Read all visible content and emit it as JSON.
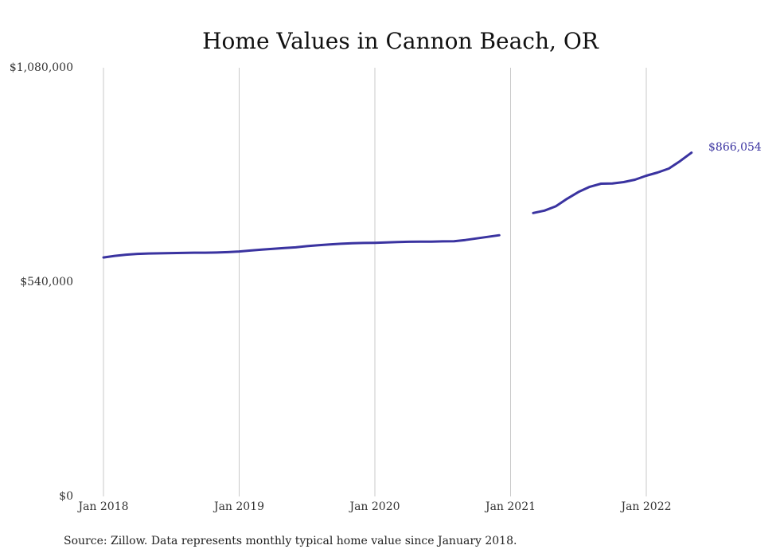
{
  "chart_data": {
    "type": "line",
    "title": "Home Values in Cannon Beach, OR",
    "xlabel": "",
    "ylabel": "",
    "ylim": [
      0,
      1080000
    ],
    "y_ticks": [
      {
        "value": 0,
        "label": "$0"
      },
      {
        "value": 540000,
        "label": "$540,000"
      },
      {
        "value": 1080000,
        "label": "$1,080,000"
      }
    ],
    "x_ticks": [
      {
        "value": "2018-01",
        "label": "Jan 2018"
      },
      {
        "value": "2019-01",
        "label": "Jan 2019"
      },
      {
        "value": "2020-01",
        "label": "Jan 2020"
      },
      {
        "value": "2021-01",
        "label": "Jan 2021"
      },
      {
        "value": "2022-01",
        "label": "Jan 2022"
      }
    ],
    "x_range": [
      "2018-01",
      "2022-05"
    ],
    "grid": "vertical",
    "legend": "none",
    "line_color": "#3a33a0",
    "end_label": "$866,054",
    "series": [
      {
        "segments": [
          [
            {
              "x": "2018-01",
              "y": 602000
            },
            {
              "x": "2018-02",
              "y": 606000
            },
            {
              "x": "2018-03",
              "y": 609000
            },
            {
              "x": "2018-04",
              "y": 611000
            },
            {
              "x": "2018-05",
              "y": 612000
            },
            {
              "x": "2018-06",
              "y": 612500
            },
            {
              "x": "2018-07",
              "y": 613000
            },
            {
              "x": "2018-08",
              "y": 613500
            },
            {
              "x": "2018-09",
              "y": 614000
            },
            {
              "x": "2018-10",
              "y": 614000
            },
            {
              "x": "2018-11",
              "y": 614500
            },
            {
              "x": "2018-12",
              "y": 615500
            },
            {
              "x": "2019-01",
              "y": 617000
            },
            {
              "x": "2019-02",
              "y": 619500
            },
            {
              "x": "2019-03",
              "y": 622000
            },
            {
              "x": "2019-04",
              "y": 624000
            },
            {
              "x": "2019-05",
              "y": 626000
            },
            {
              "x": "2019-06",
              "y": 627500
            },
            {
              "x": "2019-07",
              "y": 630500
            },
            {
              "x": "2019-08",
              "y": 633000
            },
            {
              "x": "2019-09",
              "y": 635000
            },
            {
              "x": "2019-10",
              "y": 636500
            },
            {
              "x": "2019-11",
              "y": 638000
            },
            {
              "x": "2019-12",
              "y": 638500
            },
            {
              "x": "2020-01",
              "y": 639000
            },
            {
              "x": "2020-02",
              "y": 640000
            },
            {
              "x": "2020-03",
              "y": 641000
            },
            {
              "x": "2020-04",
              "y": 641500
            },
            {
              "x": "2020-05",
              "y": 642000
            },
            {
              "x": "2020-06",
              "y": 642000
            },
            {
              "x": "2020-07",
              "y": 642500
            },
            {
              "x": "2020-08",
              "y": 643000
            },
            {
              "x": "2020-09",
              "y": 646000
            },
            {
              "x": "2020-10",
              "y": 650000
            },
            {
              "x": "2020-11",
              "y": 654000
            },
            {
              "x": "2020-12",
              "y": 658000
            }
          ],
          [
            {
              "x": "2021-03",
              "y": 714000
            },
            {
              "x": "2021-04",
              "y": 720000
            },
            {
              "x": "2021-05",
              "y": 731000
            },
            {
              "x": "2021-06",
              "y": 750000
            },
            {
              "x": "2021-07",
              "y": 767000
            },
            {
              "x": "2021-08",
              "y": 780000
            },
            {
              "x": "2021-09",
              "y": 788000
            },
            {
              "x": "2021-10",
              "y": 788500
            },
            {
              "x": "2021-11",
              "y": 792000
            },
            {
              "x": "2021-12",
              "y": 798000
            },
            {
              "x": "2022-01",
              "y": 808000
            },
            {
              "x": "2022-02",
              "y": 816000
            },
            {
              "x": "2022-03",
              "y": 826000
            },
            {
              "x": "2022-04",
              "y": 845000
            },
            {
              "x": "2022-05",
              "y": 866054
            }
          ]
        ]
      }
    ]
  },
  "footer": {
    "source": "Source: Zillow. Data represents monthly typical home value since January 2018."
  }
}
